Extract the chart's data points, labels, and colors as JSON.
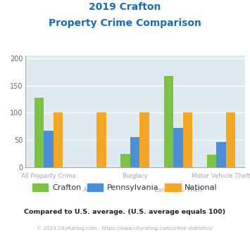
{
  "title_line1": "2019 Crafton",
  "title_line2": "Property Crime Comparison",
  "categories": [
    "All Property Crime",
    "Arson",
    "Burglary",
    "Larceny & Theft",
    "Motor Vehicle Theft"
  ],
  "crafton": [
    128,
    0,
    24,
    168,
    23
  ],
  "pennsylvania": [
    67,
    0,
    55,
    72,
    46
  ],
  "national": [
    100,
    100,
    100,
    100,
    100
  ],
  "color_crafton": "#7dc242",
  "color_pennsylvania": "#4a90d9",
  "color_national": "#f5a623",
  "ylim": [
    0,
    205
  ],
  "yticks": [
    0,
    50,
    100,
    150,
    200
  ],
  "background_chart": "#deeaf0",
  "background_fig": "#ffffff",
  "title_color": "#1a6bbf",
  "cat_color": "#b0a0c0",
  "footer_note": "Compared to U.S. average. (U.S. average equals 100)",
  "footer_copy": "© 2024 CityRating.com - https://www.cityrating.com/crime-statistics/",
  "legend_labels": [
    "Crafton",
    "Pennsylvania",
    "National"
  ],
  "bar_width": 0.22
}
